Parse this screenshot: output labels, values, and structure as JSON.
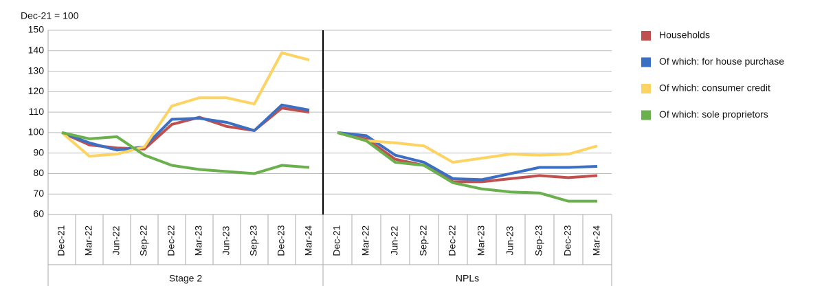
{
  "chart_data": {
    "type": "line",
    "ylabel": "Dec-21 = 100",
    "ylim": [
      60,
      150
    ],
    "yticks": [
      60,
      70,
      80,
      90,
      100,
      110,
      120,
      130,
      140,
      150
    ],
    "grid": true,
    "groups": [
      {
        "label": "Stage 2",
        "categories": [
          "Dec-21",
          "Mar-22",
          "Jun-22",
          "Sep-22",
          "Dec-22",
          "Mar-23",
          "Jun-23",
          "Sep-23",
          "Dec-23",
          "Mar-24"
        ]
      },
      {
        "label": "NPLs",
        "categories": [
          "Dec-21",
          "Mar-22",
          "Jun-22",
          "Sep-22",
          "Dec-22",
          "Mar-23",
          "Jun-23",
          "Sep-23",
          "Dec-23",
          "Mar-24"
        ]
      }
    ],
    "series": [
      {
        "name": "Households",
        "color": "#c0504d",
        "values": [
          [
            100,
            94,
            92.5,
            92,
            104,
            107.5,
            103,
            101,
            112,
            110
          ],
          [
            100,
            97,
            87,
            84,
            76,
            76,
            77.5,
            79,
            78,
            79
          ]
        ]
      },
      {
        "name": "Of which: for house purchase",
        "color": "#3a6fc4",
        "values": [
          [
            100,
            95,
            91.5,
            93,
            106.5,
            107,
            105,
            101,
            113.5,
            111
          ],
          [
            100,
            98.5,
            89,
            85.5,
            77.5,
            77,
            80,
            83,
            83,
            83.5
          ]
        ]
      },
      {
        "name": "Of which: consumer credit",
        "color": "#fdd364",
        "values": [
          [
            100,
            88.5,
            89.5,
            93,
            113,
            117,
            117,
            114,
            139,
            135.5
          ],
          [
            100,
            96,
            95,
            93.5,
            85.5,
            87.5,
            89.5,
            89,
            89.5,
            93.5
          ]
        ]
      },
      {
        "name": "Of which: sole proprietors",
        "color": "#6ab04c",
        "values": [
          [
            100,
            97,
            98,
            89,
            84,
            82,
            81,
            80,
            84,
            83
          ],
          [
            100,
            96,
            85.5,
            84,
            75.5,
            72.5,
            71,
            70.5,
            66.5,
            66.5
          ]
        ]
      }
    ]
  }
}
